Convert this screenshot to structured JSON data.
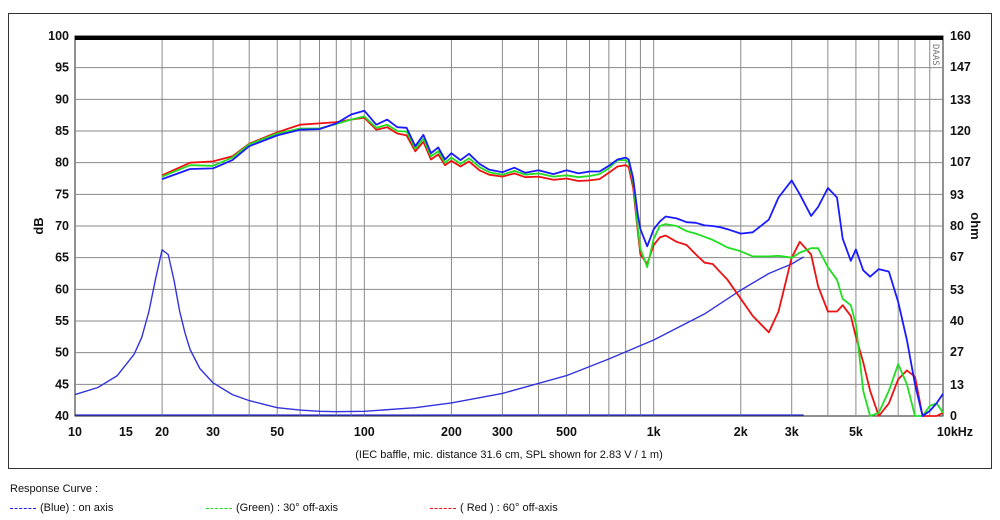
{
  "chart_data": {
    "type": "line",
    "xscale": "log",
    "xlim": [
      10,
      10000
    ],
    "ylim": [
      40,
      100
    ],
    "ylim_right": [
      0,
      160
    ],
    "x_ticks": [
      10,
      15,
      20,
      30,
      50,
      100,
      200,
      300,
      500,
      1000,
      2000,
      3000,
      5000,
      10000
    ],
    "x_tick_labels": [
      "10",
      "15",
      "20",
      "30",
      "50",
      "100",
      "200",
      "300",
      "500",
      "1k",
      "2k",
      "3k",
      "5k",
      "10kHz"
    ],
    "y_ticks": [
      40,
      45,
      50,
      55,
      60,
      65,
      70,
      75,
      80,
      85,
      90,
      95,
      100
    ],
    "y_tick_labels": [
      "40",
      "45",
      "50",
      "55",
      "60",
      "65",
      "70",
      "75",
      "80",
      "85",
      "90",
      "95",
      "100"
    ],
    "y_right_ticks": [
      0,
      13,
      27,
      40,
      53,
      67,
      80,
      93,
      107,
      120,
      133,
      147,
      160
    ],
    "y_right_tick_labels": [
      "0",
      "13",
      "27",
      "40",
      "53",
      "67",
      "80",
      "93",
      "107",
      "120",
      "133",
      "147",
      "160"
    ],
    "ylabel": "dB",
    "ylabel_right": "ohm",
    "xlabel": "(IEC baffle, mic. distance 31.6 cm, SPL shown for 2.83 V / 1 m)",
    "watermark": "DAAS",
    "grid": true,
    "series": [
      {
        "name": "(Blue)  : on axis",
        "color": "#1a1aff",
        "x": [
          20,
          25,
          30,
          35,
          40,
          50,
          60,
          70,
          80,
          90,
          100,
          110,
          120,
          130,
          140,
          150,
          160,
          170,
          180,
          190,
          200,
          215,
          230,
          250,
          270,
          300,
          330,
          360,
          400,
          450,
          500,
          550,
          600,
          650,
          700,
          750,
          800,
          820,
          850,
          880,
          900,
          950,
          1000,
          1050,
          1100,
          1200,
          1300,
          1400,
          1500,
          1600,
          1700,
          1800,
          2000,
          2200,
          2500,
          2700,
          3000,
          3200,
          3500,
          3700,
          4000,
          4300,
          4500,
          4800,
          5000,
          5300,
          5600,
          6000,
          6500,
          7000,
          7500,
          8000,
          8500,
          9000,
          9500,
          10000
        ],
        "y": [
          77.4,
          79,
          79.1,
          80.4,
          82.6,
          84.3,
          85.2,
          85.3,
          86.2,
          87.6,
          88.2,
          86,
          86.8,
          85.6,
          85.5,
          82.6,
          84.4,
          81.5,
          82.4,
          80.5,
          81.5,
          80.4,
          81.4,
          79.8,
          78.9,
          78.5,
          79.2,
          78.4,
          78.8,
          78.2,
          78.8,
          78.3,
          78.6,
          78.6,
          79.5,
          80.5,
          80.8,
          80.5,
          77.5,
          72,
          69.5,
          66.8,
          69.5,
          70.7,
          71.5,
          71.2,
          70.6,
          70.5,
          70.1,
          70,
          69.8,
          69.5,
          68.8,
          69,
          71,
          74.5,
          77.2,
          75,
          71.6,
          73,
          76,
          74.5,
          68,
          64.5,
          66.3,
          63,
          62,
          63.2,
          62.8,
          58,
          52,
          45,
          40,
          40.8,
          42,
          43.5
        ]
      },
      {
        "name": "(Green) : 30° off-axis",
        "color": "#22dd22",
        "x": [
          20,
          25,
          30,
          35,
          40,
          50,
          60,
          70,
          80,
          90,
          100,
          110,
          120,
          130,
          140,
          150,
          160,
          170,
          180,
          190,
          200,
          215,
          230,
          250,
          270,
          300,
          330,
          360,
          400,
          450,
          500,
          550,
          600,
          650,
          700,
          750,
          800,
          820,
          850,
          880,
          900,
          950,
          1000,
          1050,
          1100,
          1200,
          1300,
          1400,
          1500,
          1600,
          1700,
          1800,
          2000,
          2200,
          2500,
          2700,
          3000,
          3200,
          3500,
          3700,
          4000,
          4300,
          4500,
          4800,
          5000,
          5300,
          5600,
          6000,
          6500,
          7000,
          7500,
          8000,
          8500,
          9000,
          9500,
          10000
        ],
        "y": [
          77.8,
          79.6,
          79.5,
          80.8,
          82.9,
          84.6,
          85.4,
          85.4,
          86.1,
          86.8,
          87.3,
          85.5,
          86,
          85,
          84.9,
          82.2,
          83.8,
          81,
          81.8,
          80,
          80.8,
          79.8,
          80.7,
          79.3,
          78.5,
          78.1,
          78.7,
          78.1,
          78.3,
          77.8,
          78,
          77.7,
          77.9,
          78.2,
          79.1,
          80.4,
          80.4,
          80,
          77,
          70,
          66.4,
          63.5,
          68,
          70,
          70.3,
          70,
          69.2,
          68.8,
          68.3,
          67.8,
          67.2,
          66.6,
          66,
          65.2,
          65.2,
          65.3,
          65,
          65.8,
          66.5,
          66.5,
          63.5,
          61.5,
          58.5,
          57.5,
          54.5,
          44,
          40,
          40.5,
          44,
          48.2,
          45,
          40,
          40,
          41.6,
          42,
          40.5
        ]
      },
      {
        "name": "( Red ) : 60° off-axis",
        "color": "#ee1111",
        "x": [
          20,
          25,
          30,
          35,
          40,
          50,
          60,
          70,
          80,
          90,
          100,
          110,
          120,
          130,
          140,
          150,
          160,
          170,
          180,
          190,
          200,
          215,
          230,
          250,
          270,
          300,
          330,
          360,
          400,
          450,
          500,
          550,
          600,
          650,
          700,
          750,
          800,
          820,
          850,
          880,
          900,
          950,
          1000,
          1050,
          1100,
          1200,
          1300,
          1400,
          1500,
          1600,
          1700,
          1800,
          2000,
          2200,
          2500,
          2700,
          3000,
          3200,
          3500,
          3700,
          4000,
          4300,
          4500,
          4800,
          5000,
          5300,
          5600,
          6000,
          6500,
          7000,
          7500,
          8000,
          8500,
          9000,
          9500,
          10000
        ],
        "y": [
          78,
          80,
          80.2,
          81,
          83,
          84.8,
          86,
          86.2,
          86.4,
          86.8,
          87.1,
          85.2,
          85.6,
          84.6,
          84.3,
          81.8,
          83.3,
          80.5,
          81.3,
          79.6,
          80.3,
          79.4,
          80.2,
          78.8,
          78.1,
          77.8,
          78.3,
          77.7,
          77.8,
          77.3,
          77.5,
          77.1,
          77.2,
          77.4,
          78.4,
          79.4,
          79.6,
          79.3,
          76,
          69.4,
          65.5,
          64,
          67,
          68.2,
          68.5,
          67.5,
          67,
          65.5,
          64.2,
          64,
          62.7,
          61.5,
          58.5,
          55.8,
          53.2,
          56.5,
          65,
          67.5,
          65.5,
          60.5,
          56.5,
          56.5,
          57.5,
          55.8,
          52.5,
          48.5,
          44,
          40,
          42,
          45.8,
          47.2,
          46.2,
          40,
          40,
          40,
          40.5
        ]
      },
      {
        "name": "Impedance",
        "axis": "right",
        "color": "#3333dd",
        "x": [
          10,
          12,
          14,
          16,
          17,
          18,
          19,
          20,
          21,
          22,
          23,
          24,
          25,
          27,
          30,
          35,
          40,
          50,
          60,
          70,
          80,
          100,
          150,
          200,
          300,
          500,
          700,
          1000,
          1500,
          2000,
          2500,
          3000,
          3300
        ],
        "y": [
          9,
          12,
          17,
          26,
          33,
          44,
          58,
          70,
          68,
          57,
          44,
          35,
          28,
          20,
          14,
          9,
          6.5,
          3.5,
          2.5,
          2,
          1.8,
          2,
          3.5,
          5.5,
          9.5,
          17,
          24,
          32,
          43,
          53,
          60,
          64,
          67
        ]
      }
    ],
    "legend": {
      "title": "Response Curve :",
      "items": [
        {
          "line": "------",
          "label": "(Blue)  : on axis",
          "color": "#1a1aff"
        },
        {
          "line": "------",
          "label": "(Green) : 30° off-axis",
          "color": "#22dd22"
        },
        {
          "line": "------",
          "label": "( Red ) : 60° off-axis",
          "color": "#ee1111"
        }
      ]
    }
  }
}
